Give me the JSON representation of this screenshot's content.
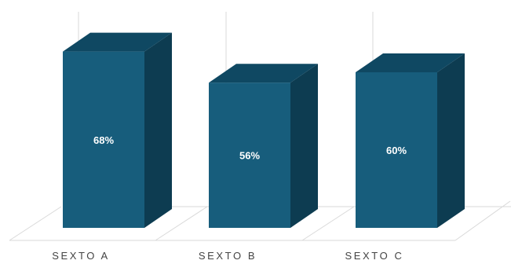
{
  "chart_data": {
    "type": "bar",
    "style": "3d-column",
    "categories": [
      "SEXTO A",
      "SEXTO B",
      "SEXTO C"
    ],
    "values": [
      68,
      56,
      60
    ],
    "data_labels": [
      "68%",
      "56%",
      "60%"
    ],
    "ylim": [
      0,
      100
    ],
    "grid": true,
    "legend": "none",
    "colors": {
      "front": "#175d7c",
      "top": "#0f4862",
      "side": "#0d3c51",
      "grid": "#d9d9d9",
      "label": "#444444",
      "data_label": "#ffffff"
    }
  }
}
